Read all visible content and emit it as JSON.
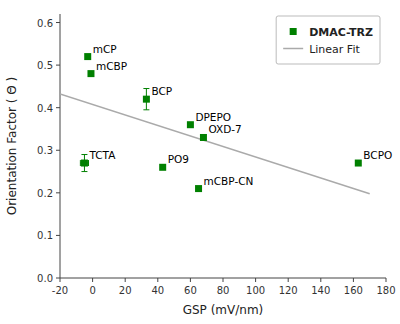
{
  "chart_data": {
    "type": "scatter",
    "xlabel": "GSP (mV/nm)",
    "ylabel": "Orientation Factor ( Θ )",
    "xlim": [
      -20,
      180
    ],
    "ylim": [
      0.0,
      0.62
    ],
    "xticks": [
      -20,
      0,
      20,
      40,
      60,
      80,
      100,
      120,
      140,
      160,
      180
    ],
    "yticks": [
      {
        "value": 0.0,
        "label": "0.0"
      },
      0.1,
      0.2,
      0.3,
      0.4,
      0.5,
      0.6
    ],
    "grid": false,
    "legend": "upper right",
    "series": [
      {
        "name": "DMAC-TRZ",
        "type": "scatter",
        "color": "#008000",
        "marker": "square",
        "labels": [
          "mCP",
          "mCBP",
          "TCTA",
          "BCP",
          "PO9",
          "DPEPO",
          "OXD-7",
          "mCBP-CN",
          "BCPO"
        ],
        "x": [
          -3,
          -1,
          -5,
          33,
          43,
          60,
          68,
          65,
          163
        ],
        "values": [
          0.52,
          0.48,
          0.27,
          0.42,
          0.26,
          0.36,
          0.33,
          0.21,
          0.27
        ],
        "xerr": [
          0,
          0,
          2.5,
          0,
          0,
          0,
          0,
          0,
          0
        ],
        "yerr": [
          0,
          0,
          0.02,
          0.025,
          0,
          0,
          0,
          0,
          0
        ]
      },
      {
        "name": "Linear Fit",
        "type": "line",
        "color": "#aaaaaa",
        "line_style": "solid",
        "x": [
          -20,
          170
        ],
        "values": [
          0.432,
          0.198
        ]
      }
    ]
  }
}
